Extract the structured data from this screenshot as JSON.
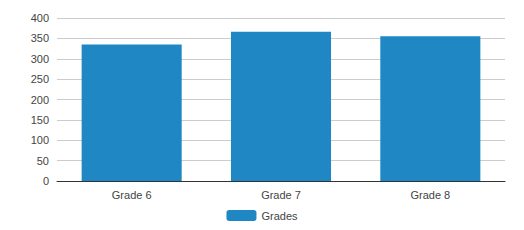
{
  "chart_data": {
    "type": "bar",
    "categories": [
      "Grade 6",
      "Grade 7",
      "Grade 8"
    ],
    "series": [
      {
        "name": "Grades",
        "color": "#1f88c4",
        "values": [
          335,
          366,
          355
        ]
      }
    ],
    "ylim": [
      0,
      400
    ],
    "yticks": [
      0,
      50,
      100,
      150,
      200,
      250,
      300,
      350,
      400
    ],
    "grid": true,
    "legend": "bottom"
  }
}
